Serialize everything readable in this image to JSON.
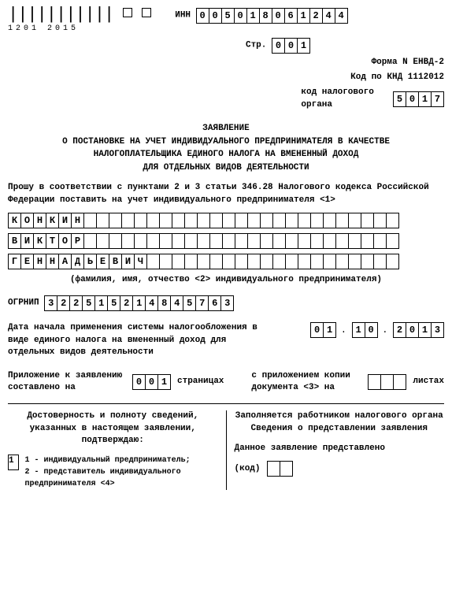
{
  "barcode": {
    "number": "1201 2015"
  },
  "inn": {
    "label": "ИНН",
    "cells": [
      "0",
      "0",
      "5",
      "0",
      "1",
      "8",
      "0",
      "6",
      "1",
      "2",
      "4",
      "4"
    ]
  },
  "page": {
    "label": "Стр.",
    "cells": [
      "0",
      "0",
      "1"
    ]
  },
  "form_line": "Форма N ЕНВД-2",
  "knd_line": "Код по КНД 1112012",
  "tax_code": {
    "label": "код налогового органа",
    "cells": [
      "5",
      "0",
      "1",
      "7"
    ]
  },
  "title": {
    "l1": "ЗАЯВЛЕНИЕ",
    "l2": "О ПОСТАНОВКЕ НА УЧЕТ ИНДИВИДУАЛЬНОГО ПРЕДПРИНИМАТЕЛЯ В КАЧЕСТВЕ",
    "l3": "НАЛОГОПЛАТЕЛЬЩИКА ЕДИНОГО НАЛОГА НА ВМЕНЕННЫЙ ДОХОД",
    "l4": "ДЛЯ ОТДЕЛЬНЫХ ВИДОВ ДЕЯТЕЛЬНОСТИ"
  },
  "intro": "Прошу в соответствии с пунктами 2 и 3 статьи 346.28 Налогового кодекса Российской Федерации поставить на учет индивидуального предпринимателя <1>",
  "surname": [
    "К",
    "О",
    "Н",
    "К",
    "И",
    "Н",
    "",
    "",
    "",
    "",
    "",
    "",
    "",
    "",
    "",
    "",
    "",
    "",
    "",
    "",
    "",
    "",
    "",
    "",
    "",
    "",
    "",
    "",
    "",
    "",
    ""
  ],
  "name": [
    "В",
    "И",
    "К",
    "Т",
    "О",
    "Р",
    "",
    "",
    "",
    "",
    "",
    "",
    "",
    "",
    "",
    "",
    "",
    "",
    "",
    "",
    "",
    "",
    "",
    "",
    "",
    "",
    "",
    "",
    "",
    "",
    ""
  ],
  "patr": [
    "Г",
    "Е",
    "Н",
    "Н",
    "А",
    "Д",
    "Ь",
    "Е",
    "В",
    "И",
    "Ч",
    "",
    "",
    "",
    "",
    "",
    "",
    "",
    "",
    "",
    "",
    "",
    "",
    "",
    "",
    "",
    "",
    "",
    "",
    "",
    ""
  ],
  "fio_note": "(фамилия, имя, отчество <2> индивидуального предпринимателя)",
  "ogrnip": {
    "label": "ОГРНИП",
    "cells": [
      "3",
      "2",
      "2",
      "5",
      "1",
      "5",
      "2",
      "1",
      "4",
      "8",
      "4",
      "5",
      "7",
      "6",
      "3"
    ]
  },
  "start_date": {
    "text": "Дата начала применения системы налогообложения в виде единого налога на вмененный доход для отдельных видов деятельности",
    "d": [
      "0",
      "1"
    ],
    "m": [
      "1",
      "0"
    ],
    "y": [
      "2",
      "0",
      "1",
      "3"
    ]
  },
  "attach": {
    "l1": "Приложение к заявлению составлено на",
    "cells": [
      "0",
      "0",
      "1"
    ],
    "l2": "страницах",
    "r1": "с приложением копии документа <3> на",
    "rcells": [
      "",
      "",
      ""
    ],
    "r2": "листах"
  },
  "left_block": {
    "h": "Достоверность и полноту сведений, указанных в настоящем заявлении, подтверждаю:",
    "opt": "1",
    "o1": "1 - индивидуальный предприниматель;",
    "o2": "2 - представитель индивидуального предпринимателя <4>"
  },
  "right_block": {
    "h1": "Заполняется работником налогового органа",
    "h2": "Сведения о представлении заявления",
    "t": "Данное заявление представлено",
    "code_label": "(код)"
  }
}
